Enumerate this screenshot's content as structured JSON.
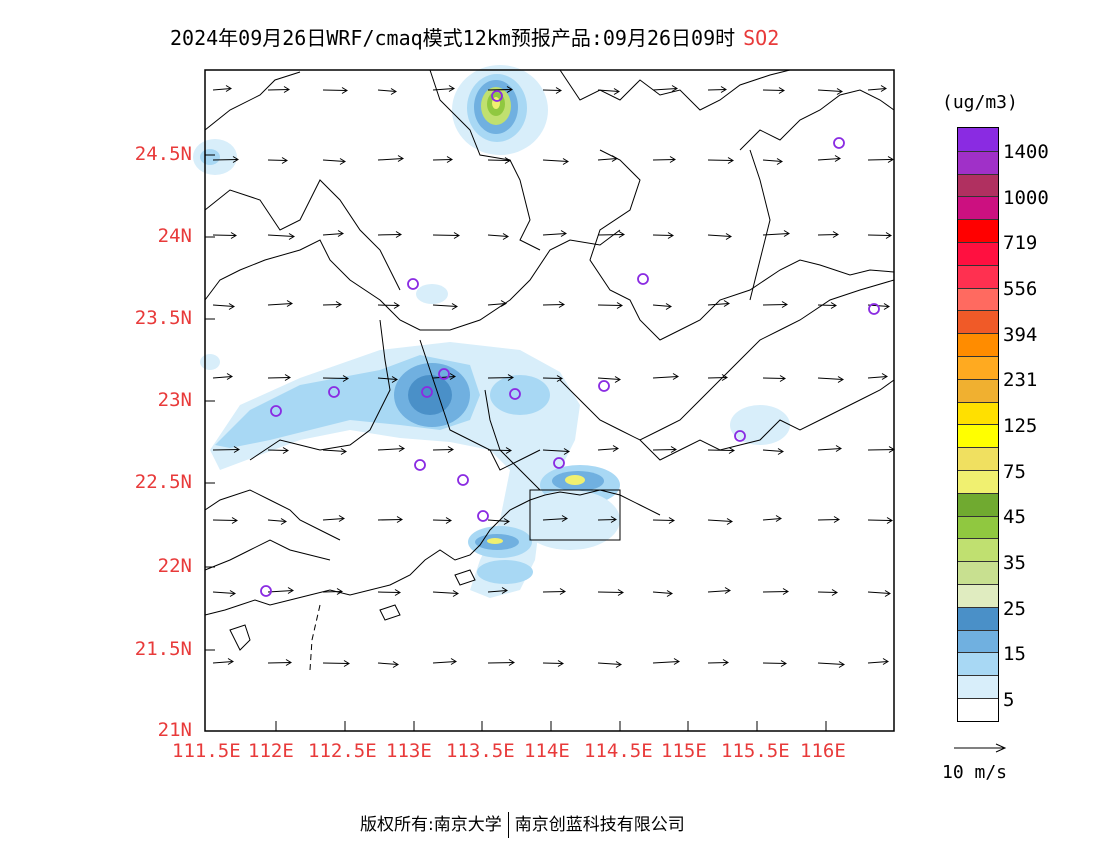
{
  "title": {
    "text": "2024年09月26日WRF/cmaq模式12km预报产品:09月26日09时",
    "species": "SO2"
  },
  "axes": {
    "y_ticks": [
      "24.5N",
      "24N",
      "23.5N",
      "23N",
      "22.5N",
      "22N",
      "21.5N",
      "21N"
    ],
    "x_ticks": [
      "111.5E",
      "112E",
      "112.5E",
      "113E",
      "113.5E",
      "114E",
      "114.5E",
      "115E",
      "115.5E",
      "116E"
    ]
  },
  "colorbar": {
    "unit": "(ug/m3)",
    "labels": [
      "1400",
      "1000",
      "719",
      "556",
      "394",
      "231",
      "125",
      "75",
      "45",
      "35",
      "25",
      "15",
      "5"
    ],
    "colors": [
      "#8a2be2",
      "#a030c8",
      "#b03060",
      "#cc1080",
      "#ff0000",
      "#ff1040",
      "#ff3050",
      "#ff6a60",
      "#f05a28",
      "#ff8c00",
      "#ffaa20",
      "#f0b030",
      "#ffe000",
      "#ffff00",
      "#f0e060",
      "#f0f070",
      "#70aa30",
      "#90c840",
      "#c0e070",
      "#c8e090",
      "#e0ecc0",
      "#4a90c8",
      "#70b0e0",
      "#a8d8f4",
      "#d8eefa",
      "#ffffff"
    ]
  },
  "wind": {
    "reference_label": "10 m/s",
    "direction": "east"
  },
  "stations_color": "#8a2be2",
  "footer": {
    "left": "版权所有:南京大学",
    "right": "南京创蓝科技有限公司"
  }
}
